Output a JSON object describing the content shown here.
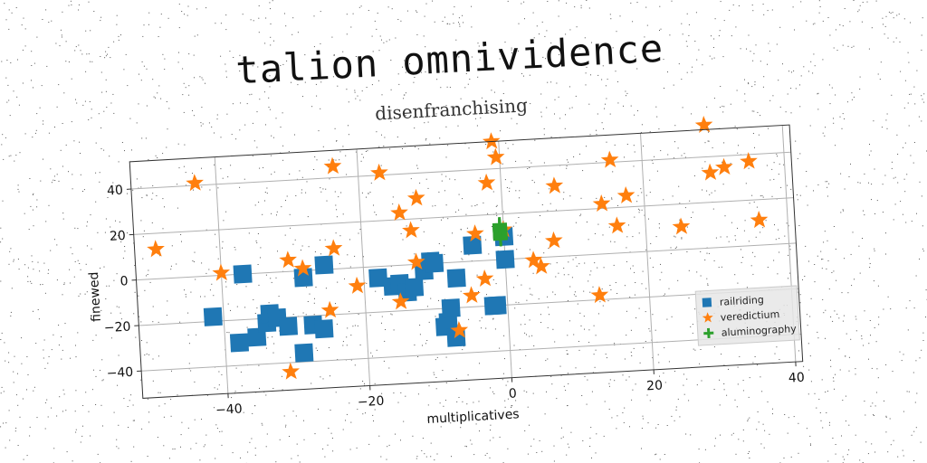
{
  "chart_data": {
    "type": "scatter",
    "title": "talion omnividence",
    "subtitle": "disenfranchising",
    "xlabel": "multiplicatives",
    "ylabel": "finewed",
    "xlim": [
      -52,
      41
    ],
    "ylim": [
      -52,
      52
    ],
    "xticks": [
      -40,
      -20,
      0,
      20,
      40
    ],
    "yticks": [
      -40,
      -20,
      0,
      20,
      40
    ],
    "grid": true,
    "legend_position": "lower-right",
    "series": [
      {
        "name": "railriding",
        "marker": "square",
        "color": "#1f77b4",
        "x": [
          -41.5,
          -38,
          -37,
          -35.5,
          -34,
          -33.5,
          -32.5,
          -31,
          -29,
          -28.5,
          -27.5,
          -26,
          -25.5,
          -18,
          -16,
          -15,
          -14,
          -13,
          -11.5,
          -10.5,
          -10,
          -9,
          -8.5,
          -8,
          -7,
          -7.5,
          -4.5,
          -2,
          -1.5,
          0,
          0
        ],
        "y": [
          -18,
          -30,
          0,
          -28,
          -22,
          -18,
          -20,
          -24,
          -36,
          -3,
          -24,
          -26,
          2,
          -5,
          -9,
          -8,
          -12,
          -10,
          -3,
          1,
          0,
          -28,
          -26,
          -20,
          -7,
          -33,
          7,
          -20,
          -20,
          0,
          10
        ]
      },
      {
        "name": "veredictium",
        "marker": "star",
        "color": "#ff7f0e",
        "x": [
          -49,
          -43,
          -40,
          -31,
          -30.5,
          -28.5,
          -25,
          -24,
          -23.5,
          -21,
          -17,
          -15,
          -14.5,
          -13,
          -12.5,
          -12,
          -7,
          -5,
          -4,
          -3,
          -2,
          -1,
          -0.5,
          0,
          4,
          5,
          7,
          7.5,
          13,
          14,
          15.5,
          16,
          17.5,
          25,
          29,
          29.5,
          31.5,
          35,
          36
        ],
        "y": [
          13,
          41,
          1,
          -44,
          5,
          1,
          -18,
          9,
          45,
          -8,
          41,
          -16,
          23,
          15,
          1,
          29,
          -30,
          -15,
          12,
          -8,
          34,
          52,
          45,
          13,
          -1,
          -4,
          7,
          31,
          -18,
          22,
          41,
          12,
          25,
          10,
          54,
          33,
          35,
          37,
          11
        ]
      },
      {
        "name": "aluminography",
        "marker": "plus",
        "color": "#2ca02c",
        "x": [
          -0.5,
          -0.5,
          -0.5,
          -0.5,
          -0.5,
          -0.5,
          -0.5,
          -0.5,
          -0.5,
          -0.5,
          -0.5,
          -0.5,
          -0.5,
          -0.5
        ],
        "y": [
          9,
          9.5,
          10,
          10.5,
          11,
          11.5,
          12,
          12.5,
          13,
          13.5,
          14,
          14.5,
          15,
          15.5
        ]
      }
    ]
  }
}
